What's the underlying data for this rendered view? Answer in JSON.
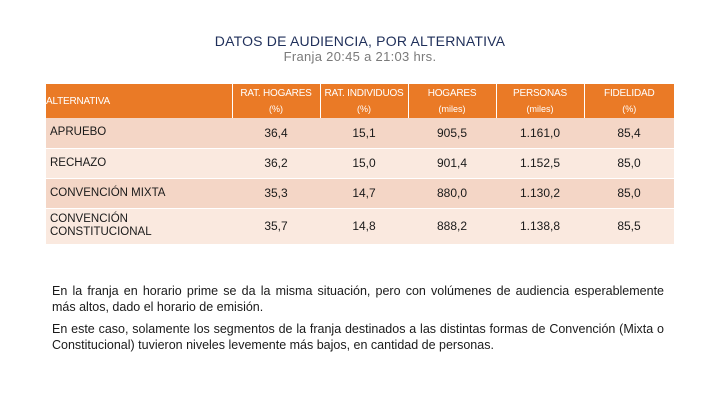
{
  "title": "DATOS DE AUDIENCIA, POR ALTERNATIVA",
  "subtitle": "Franja 20:45 a 21:03 hrs.",
  "table": {
    "headers": [
      {
        "line1": "ALTERNATIVA",
        "line2": ""
      },
      {
        "line1": "RAT. HOGARES",
        "line2": "(%)"
      },
      {
        "line1": "RAT. INDIVIDUOS",
        "line2": "(%)"
      },
      {
        "line1": "HOGARES",
        "line2": "(miles)"
      },
      {
        "line1": "PERSONAS",
        "line2": "(miles)"
      },
      {
        "line1": "FIDELIDAD",
        "line2": "(%)"
      }
    ],
    "rows": [
      {
        "label": "APRUEBO",
        "values": [
          "36,4",
          "15,1",
          "905,5",
          "1.161,0",
          "85,4"
        ]
      },
      {
        "label": "RECHAZO",
        "values": [
          "36,2",
          "15,0",
          "901,4",
          "1.152,5",
          "85,0"
        ]
      },
      {
        "label": "CONVENCIÓN MIXTA",
        "values": [
          "35,3",
          "14,7",
          "880,0",
          "1.130,2",
          "85,0"
        ]
      },
      {
        "label": "CONVENCIÓN CONSTITUCIONAL",
        "values": [
          "35,7",
          "14,8",
          "888,2",
          "1.138,8",
          "85,5"
        ]
      }
    ]
  },
  "paragraphs": [
    "En la franja en horario prime se da la misma situación, pero con volúmenes de audiencia esperablemente más altos, dado el horario de emisión.",
    "En este caso, solamente los segmentos de la franja destinados a las distintas formas de Convención (Mixta o Constitucional) tuvieron niveles levemente más bajos, en cantidad de personas."
  ],
  "colors": {
    "header_bg": "#ea7a26",
    "row_odd": "#f4d6c6",
    "row_even": "#fae9df",
    "title": "#1f2f5a"
  }
}
